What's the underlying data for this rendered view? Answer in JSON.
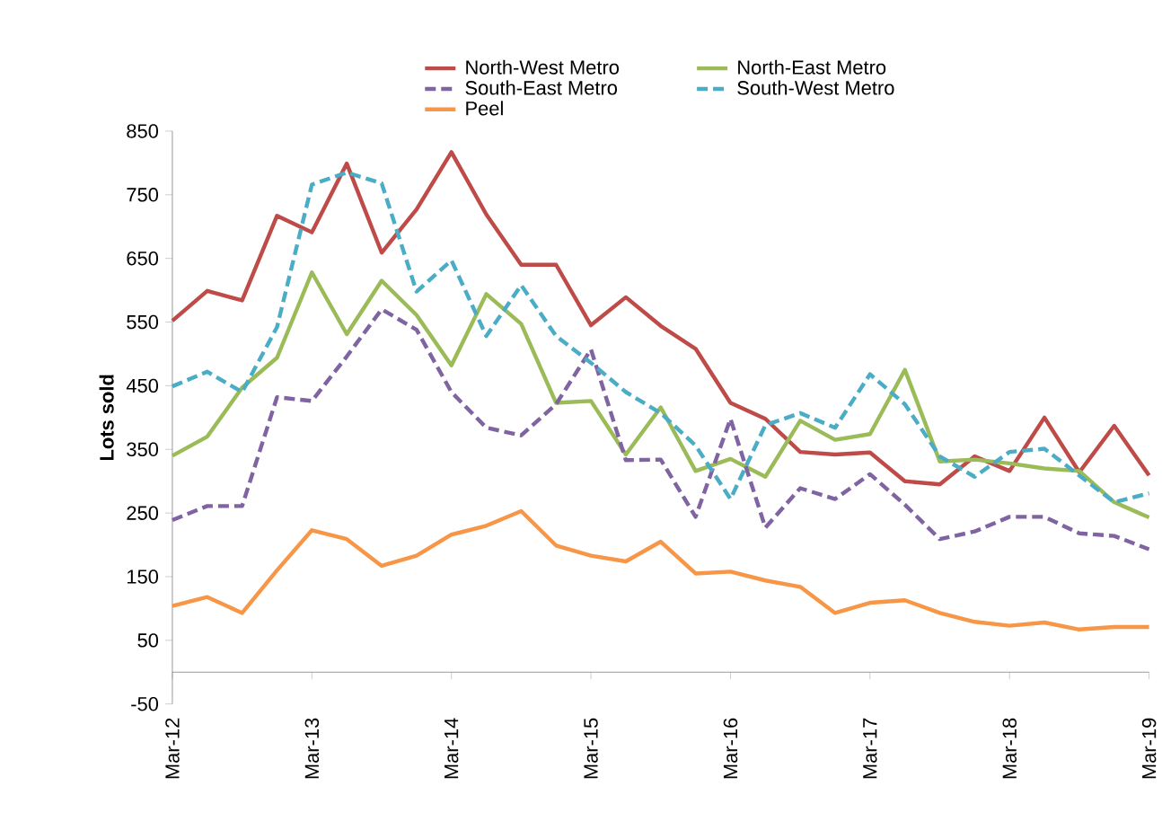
{
  "chart_data": {
    "type": "line",
    "ylabel": "Lots sold",
    "categories": [
      "Mar-12",
      null,
      null,
      null,
      "Mar-13",
      null,
      null,
      null,
      "Mar-14",
      null,
      null,
      null,
      "Mar-15",
      null,
      null,
      null,
      "Mar-16",
      null,
      null,
      null,
      "Mar-17",
      null,
      null,
      null,
      "Mar-18",
      null,
      null,
      null,
      "Mar-19"
    ],
    "series": [
      {
        "name": "North-West Metro",
        "color": "#be4b48",
        "line_style": "solid",
        "values": [
          552,
          599,
          584,
          717,
          691,
          799,
          659,
          727,
          817,
          719,
          640,
          640,
          545,
          589,
          544,
          508,
          423,
          398,
          346,
          342,
          345,
          300,
          295,
          339,
          316,
          400,
          314,
          387,
          309
        ]
      },
      {
        "name": "North-East Metro",
        "color": "#9bbb59",
        "line_style": "solid",
        "values": [
          340,
          370,
          447,
          494,
          628,
          531,
          615,
          561,
          482,
          594,
          547,
          423,
          426,
          342,
          416,
          316,
          335,
          307,
          395,
          365,
          374,
          475,
          331,
          334,
          328,
          320,
          316,
          267,
          243
        ]
      },
      {
        "name": "South-East Metro",
        "color": "#8064a2",
        "line_style": "dashed",
        "values": [
          239,
          261,
          261,
          432,
          426,
          496,
          570,
          538,
          440,
          384,
          372,
          421,
          507,
          333,
          334,
          244,
          398,
          227,
          289,
          272,
          311,
          263,
          209,
          221,
          244,
          244,
          218,
          214,
          193
        ]
      },
      {
        "name": "South-West Metro",
        "color": "#4bacc6",
        "line_style": "dashed",
        "values": [
          449,
          472,
          440,
          542,
          766,
          785,
          768,
          598,
          647,
          528,
          608,
          528,
          486,
          440,
          407,
          356,
          272,
          388,
          407,
          384,
          468,
          421,
          339,
          307,
          346,
          351,
          309,
          267,
          281
        ]
      },
      {
        "name": "Peel",
        "color": "#f79646",
        "line_style": "solid",
        "values": [
          104,
          118,
          93,
          160,
          223,
          209,
          167,
          183,
          216,
          230,
          253,
          199,
          183,
          174,
          205,
          155,
          158,
          144,
          134,
          93,
          109,
          113,
          93,
          79,
          73,
          78,
          67,
          71,
          71
        ]
      }
    ],
    "ylim": [
      -50,
      850
    ],
    "yticks": [
      -50,
      50,
      150,
      250,
      350,
      450,
      550,
      650,
      750,
      850
    ],
    "legend": "top",
    "grid": false
  }
}
